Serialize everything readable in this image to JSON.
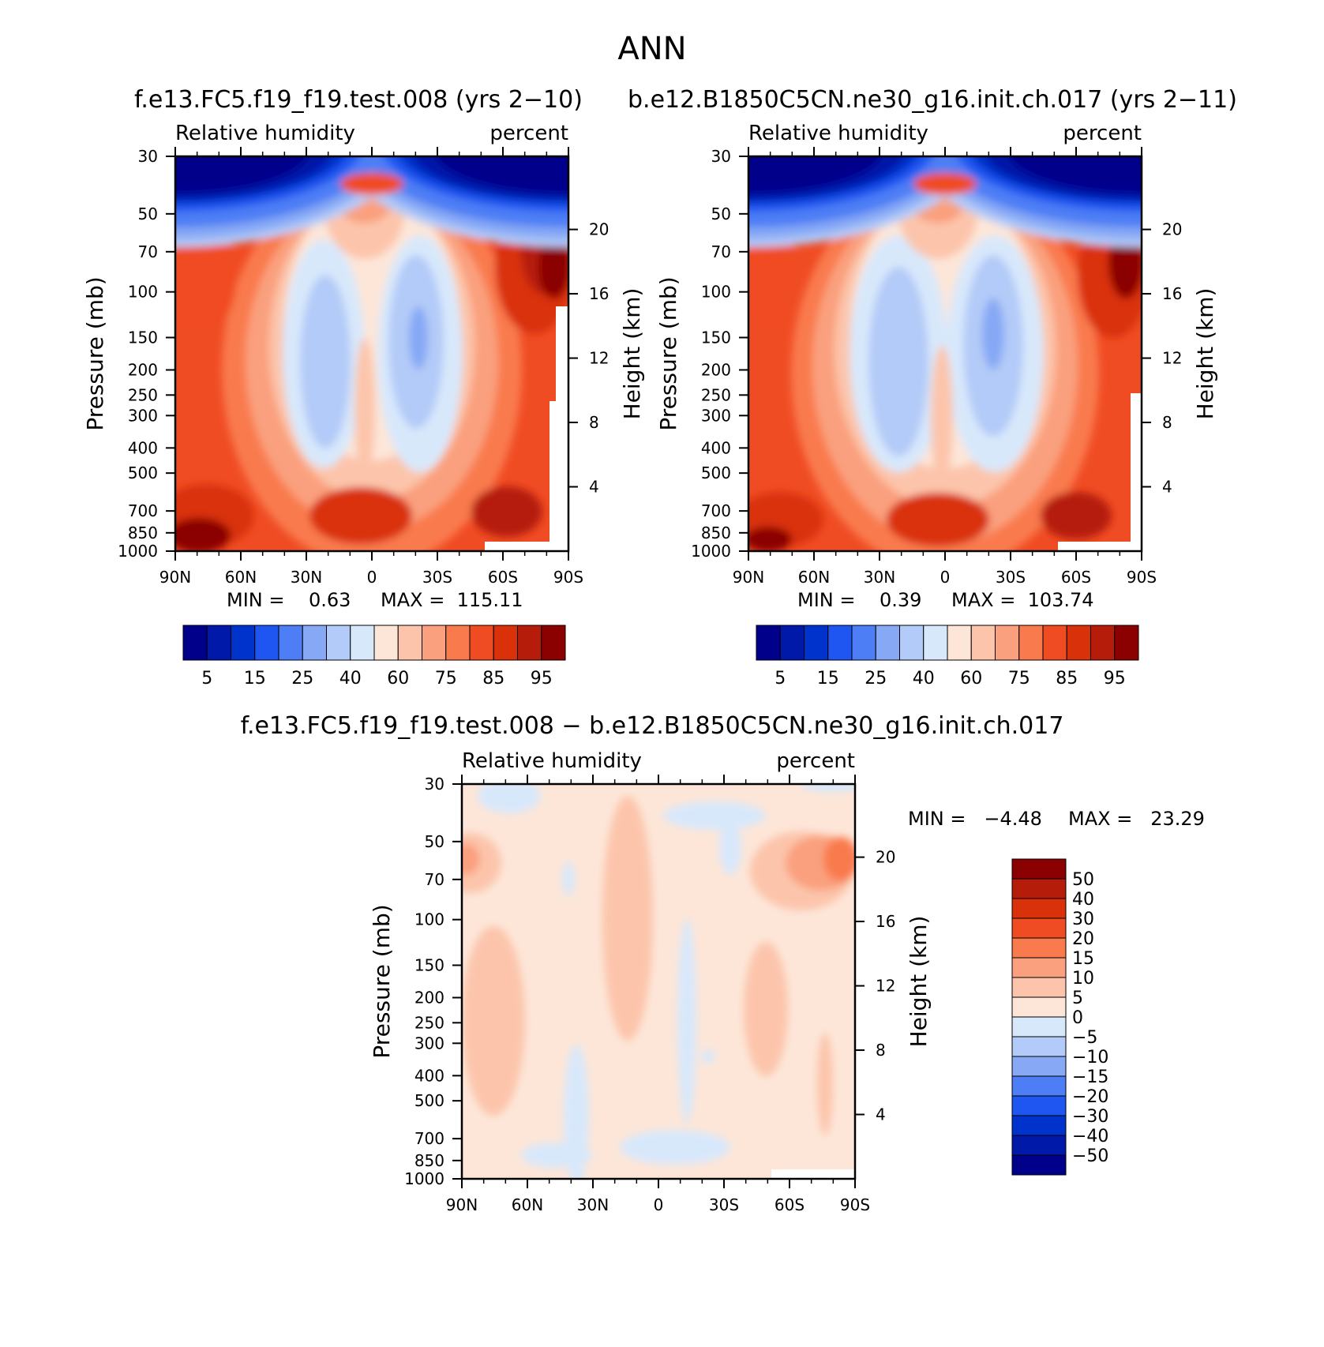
{
  "figure": {
    "title": "ANN",
    "left_label": "f.e13.FC5.f19_f19.test.008 (yrs 2−10)",
    "right_label": "b.e12.B1850C5CN.ne30_g16.init.ch.017 (yrs 2−11)",
    "diff_label": "f.e13.FC5.f19_f19.test.008 − b.e12.B1850C5CN.ne30_g16.init.ch.017"
  },
  "chart_data": [
    {
      "type": "heatmap",
      "variable": "Relative humidity",
      "units": "percent",
      "ylabel": "Pressure (mb)",
      "ylabel2": "Height (km)",
      "x_ticks": [
        "90N",
        "60N",
        "30N",
        "0",
        "30S",
        "60S",
        "90S"
      ],
      "y_ticks": [
        30,
        50,
        70,
        100,
        150,
        200,
        250,
        300,
        400,
        500,
        700,
        850,
        1000
      ],
      "height_ticks": [
        20,
        16,
        12,
        8,
        4
      ],
      "min_text": "MIN =    0.63",
      "max_text": "MAX =  115.11",
      "colorbar_levels": [
        5,
        10,
        15,
        20,
        25,
        30,
        40,
        50,
        60,
        70,
        75,
        80,
        85,
        90,
        95
      ],
      "colorbar_labels": [
        "5",
        "15",
        "25",
        "40",
        "60",
        "75",
        "85",
        "95"
      ]
    },
    {
      "type": "heatmap",
      "variable": "Relative humidity",
      "units": "percent",
      "ylabel": "Pressure (mb)",
      "ylabel2": "Height (km)",
      "x_ticks": [
        "90N",
        "60N",
        "30N",
        "0",
        "30S",
        "60S",
        "90S"
      ],
      "y_ticks": [
        30,
        50,
        70,
        100,
        150,
        200,
        250,
        300,
        400,
        500,
        700,
        850,
        1000
      ],
      "height_ticks": [
        20,
        16,
        12,
        8,
        4
      ],
      "min_text": "MIN =    0.39",
      "max_text": "MAX =  103.74",
      "colorbar_levels": [
        5,
        10,
        15,
        20,
        25,
        30,
        40,
        50,
        60,
        70,
        75,
        80,
        85,
        90,
        95
      ],
      "colorbar_labels": [
        "5",
        "15",
        "25",
        "40",
        "60",
        "75",
        "85",
        "95"
      ]
    },
    {
      "type": "heatmap",
      "variable": "Relative humidity",
      "units": "percent",
      "ylabel": "Pressure (mb)",
      "ylabel2": "Height (km)",
      "x_ticks": [
        "90N",
        "60N",
        "30N",
        "0",
        "30S",
        "60S",
        "90S"
      ],
      "y_ticks": [
        30,
        50,
        70,
        100,
        150,
        200,
        250,
        300,
        400,
        500,
        700,
        850,
        1000
      ],
      "height_ticks": [
        20,
        16,
        12,
        8,
        4
      ],
      "min_text": "MIN =   −4.48",
      "max_text": "MAX =   23.29",
      "colorbar_levels": [
        50,
        40,
        30,
        20,
        15,
        10,
        5,
        0,
        -5,
        -10,
        -15,
        -20,
        -30,
        -40,
        -50
      ],
      "colorbar_labels": [
        "50",
        "40",
        "30",
        "20",
        "15",
        "10",
        "5",
        "0",
        "−5",
        "−10",
        "−15",
        "−20",
        "−30",
        "−40",
        "−50"
      ]
    }
  ],
  "palette": [
    "#00008b",
    "#0019a8",
    "#0033cc",
    "#1f55f0",
    "#4d7ef5",
    "#86a8f5",
    "#b3cbf8",
    "#d8e8fb",
    "#fde6d8",
    "#fcc5ab",
    "#faa07e",
    "#f97a4d",
    "#f04c24",
    "#d9320b",
    "#b51d0a",
    "#8b0000"
  ]
}
